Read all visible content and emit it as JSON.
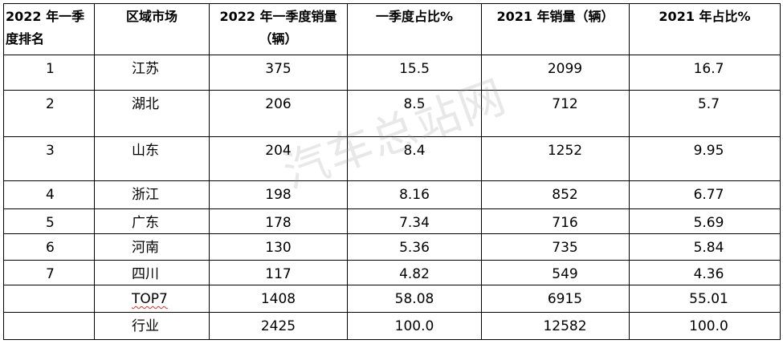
{
  "table": {
    "headers": {
      "rank": "2022 年一季度排名",
      "region": "区域市场",
      "sales_2022q1": "2022 年一季度销量（辆）",
      "share_2022q1": "一季度占比%",
      "sales_2021": "2021 年销量（辆）",
      "share_2021": "2021 年占比%"
    },
    "rows": [
      {
        "rank": "1",
        "region": "江苏",
        "sales_2022q1": "375",
        "share_2022q1": "15.5",
        "sales_2021": "2099",
        "share_2021": "16.7"
      },
      {
        "rank": "2",
        "region": "湖北",
        "sales_2022q1": "206",
        "share_2022q1": "8.5",
        "sales_2021": "712",
        "share_2021": "5.7"
      },
      {
        "rank": "3",
        "region": "山东",
        "sales_2022q1": "204",
        "share_2022q1": "8.4",
        "sales_2021": "1252",
        "share_2021": "9.95"
      },
      {
        "rank": "4",
        "region": "浙江",
        "sales_2022q1": "198",
        "share_2022q1": "8.16",
        "sales_2021": "852",
        "share_2021": "6.77"
      },
      {
        "rank": "5",
        "region": "广东",
        "sales_2022q1": "178",
        "share_2022q1": "7.34",
        "sales_2021": "716",
        "share_2021": "5.69"
      },
      {
        "rank": "6",
        "region": "河南",
        "sales_2022q1": "130",
        "share_2022q1": "5.36",
        "sales_2021": "735",
        "share_2021": "5.84"
      },
      {
        "rank": "7",
        "region": "四川",
        "sales_2022q1": "117",
        "share_2022q1": "4.82",
        "sales_2021": "549",
        "share_2021": "4.36"
      },
      {
        "rank": "",
        "region": "TOP7",
        "sales_2022q1": "1408",
        "share_2022q1": "58.08",
        "sales_2021": "6915",
        "share_2021": "55.01"
      },
      {
        "rank": "",
        "region": "行业",
        "sales_2022q1": "2425",
        "share_2022q1": "100.0",
        "sales_2021": "12582",
        "share_2021": "100.0"
      }
    ]
  },
  "watermark": "汽车总站网"
}
